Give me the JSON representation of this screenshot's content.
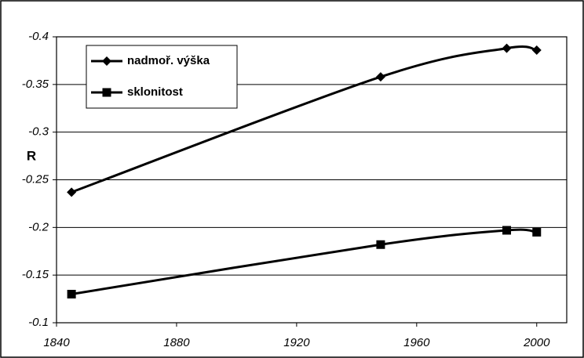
{
  "chart_data": {
    "type": "line",
    "y_label": "R",
    "xlim": [
      1840,
      2010
    ],
    "xticks": [
      1840,
      1880,
      1920,
      1960,
      2000
    ],
    "ylim": [
      -0.1,
      -0.4
    ],
    "yticks": [
      -0.1,
      -0.15,
      -0.2,
      -0.25,
      -0.3,
      -0.35,
      -0.4
    ],
    "grid": true,
    "legend": "top-left",
    "series": [
      {
        "name": "nadmoř. výška",
        "color": "#000000",
        "marker": "diamond",
        "x": [
          1845,
          1948,
          1990,
          2000
        ],
        "values": [
          -0.237,
          -0.358,
          -0.388,
          -0.386
        ]
      },
      {
        "name": "sklonitost",
        "color": "#000000",
        "marker": "square",
        "x": [
          1845,
          1948,
          1990,
          2000
        ],
        "values": [
          -0.13,
          -0.182,
          -0.197,
          -0.195
        ]
      }
    ]
  }
}
